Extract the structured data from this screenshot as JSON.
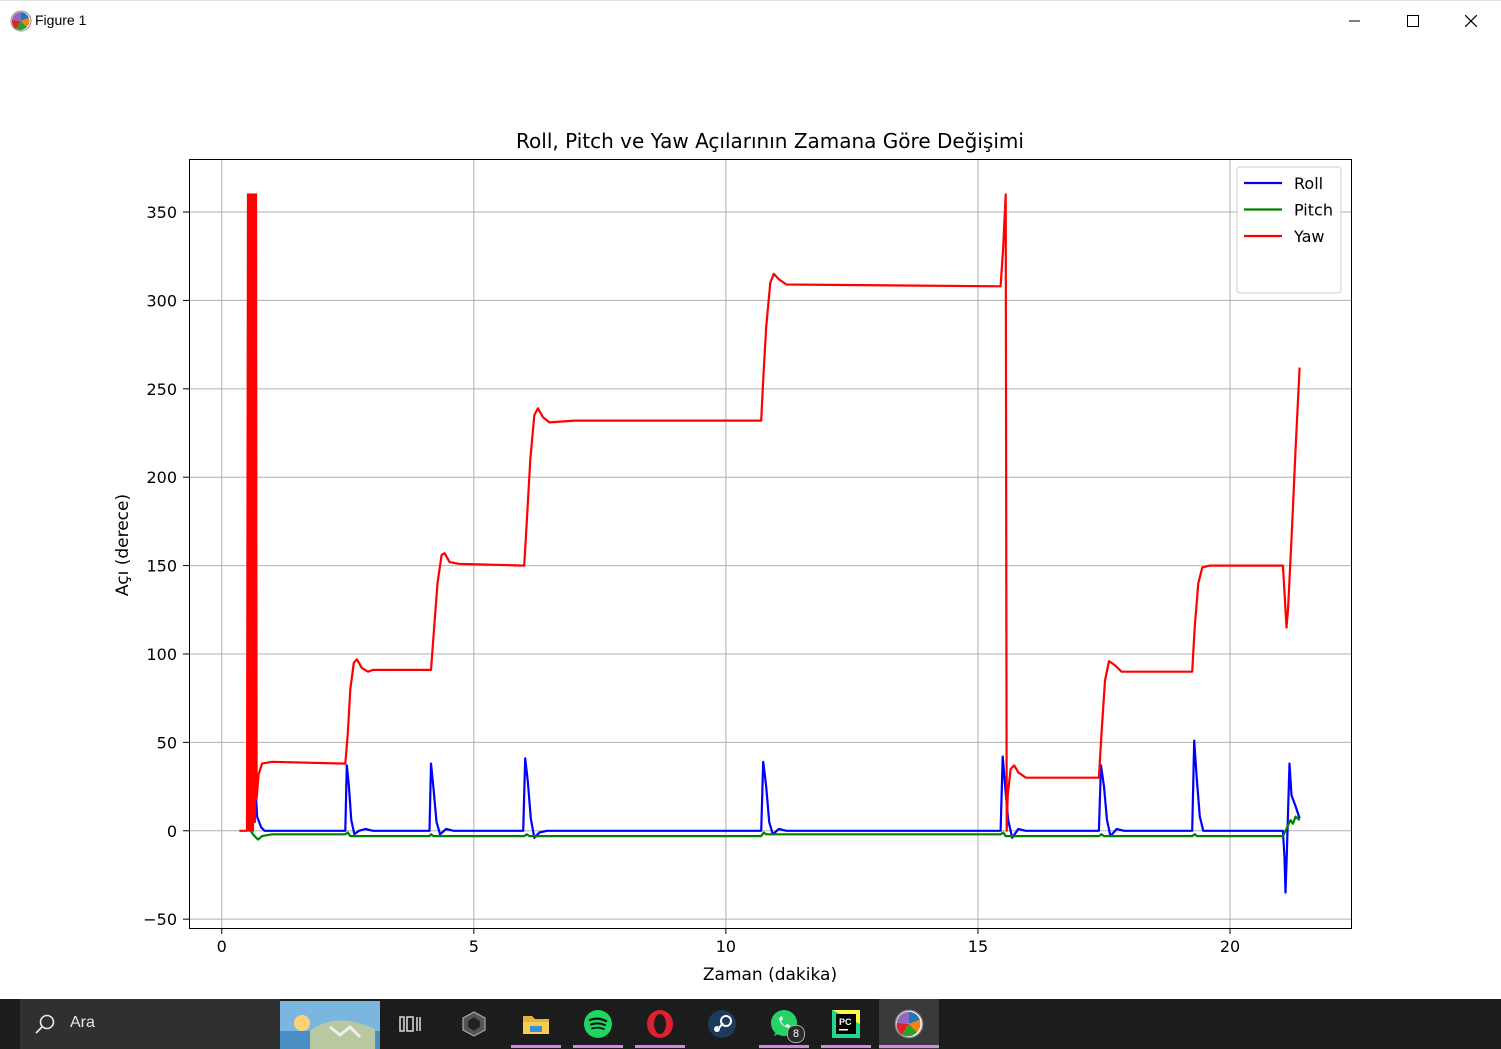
{
  "window": {
    "title": "Figure 1",
    "minimize_icon": "minimize-icon",
    "maximize_icon": "maximize-icon",
    "close_icon": "close-icon"
  },
  "taskbar": {
    "search_placeholder": "Ara",
    "search_icon": "search-icon",
    "apps": [
      {
        "name": "task-view",
        "icon": "task-view-icon"
      },
      {
        "name": "unity",
        "icon": "unity-icon"
      },
      {
        "name": "file-explorer",
        "icon": "folder-icon"
      },
      {
        "name": "spotify",
        "icon": "spotify-icon"
      },
      {
        "name": "opera",
        "icon": "opera-icon"
      },
      {
        "name": "steam",
        "icon": "steam-icon"
      },
      {
        "name": "whatsapp",
        "icon": "whatsapp-icon",
        "badge": "8"
      },
      {
        "name": "pycharm",
        "icon": "pycharm-icon",
        "label": "PC"
      },
      {
        "name": "matplotlib-figure",
        "icon": "matplotlib-icon"
      }
    ]
  },
  "chart_data": {
    "type": "line",
    "title": "Roll, Pitch ve Yaw Açılarının Zamana Göre Değişimi",
    "xlabel": "Zaman (dakika)",
    "ylabel": "Açı (derece)",
    "xlim": [
      -0.65,
      22.4
    ],
    "ylim": [
      -55,
      380
    ],
    "xticks": [
      0,
      5,
      10,
      15,
      20
    ],
    "yticks": [
      -50,
      0,
      50,
      100,
      150,
      200,
      250,
      300,
      350
    ],
    "xtick_labels": [
      "0",
      "5",
      "10",
      "15",
      "20"
    ],
    "ytick_labels": [
      "−50",
      "0",
      "50",
      "100",
      "150",
      "200",
      "250",
      "300",
      "350"
    ],
    "grid": true,
    "legend": "top-right",
    "series": [
      {
        "name": "Roll",
        "color": "#0000ff",
        "points": [
          [
            0.57,
            0
          ],
          [
            0.62,
            15
          ],
          [
            0.66,
            30
          ],
          [
            0.7,
            8
          ],
          [
            0.78,
            2
          ],
          [
            0.85,
            0
          ],
          [
            1.5,
            0
          ],
          [
            2.45,
            0
          ],
          [
            2.48,
            37
          ],
          [
            2.52,
            26
          ],
          [
            2.57,
            6
          ],
          [
            2.63,
            -2
          ],
          [
            2.72,
            0
          ],
          [
            2.85,
            1
          ],
          [
            3.0,
            0
          ],
          [
            4.12,
            0
          ],
          [
            4.15,
            38
          ],
          [
            4.2,
            24
          ],
          [
            4.26,
            5
          ],
          [
            4.33,
            -2
          ],
          [
            4.45,
            1
          ],
          [
            4.6,
            0
          ],
          [
            5.98,
            0
          ],
          [
            6.02,
            41
          ],
          [
            6.07,
            28
          ],
          [
            6.13,
            7
          ],
          [
            6.2,
            -4
          ],
          [
            6.3,
            -1
          ],
          [
            6.45,
            0
          ],
          [
            10.7,
            0
          ],
          [
            10.74,
            39
          ],
          [
            10.8,
            25
          ],
          [
            10.86,
            5
          ],
          [
            10.93,
            -2
          ],
          [
            11.05,
            1
          ],
          [
            11.2,
            0
          ],
          [
            15.45,
            0
          ],
          [
            15.49,
            42
          ],
          [
            15.53,
            28
          ],
          [
            15.6,
            6
          ],
          [
            15.68,
            -4
          ],
          [
            15.8,
            1
          ],
          [
            15.95,
            0
          ],
          [
            17.4,
            0
          ],
          [
            17.44,
            37
          ],
          [
            17.5,
            25
          ],
          [
            17.56,
            6
          ],
          [
            17.63,
            -3
          ],
          [
            17.75,
            1
          ],
          [
            17.9,
            0
          ],
          [
            19.25,
            0
          ],
          [
            19.29,
            51
          ],
          [
            19.34,
            30
          ],
          [
            19.4,
            8
          ],
          [
            19.47,
            0
          ],
          [
            19.6,
            0
          ],
          [
            21.05,
            0
          ],
          [
            21.08,
            -15
          ],
          [
            21.1,
            -35
          ],
          [
            21.13,
            -10
          ],
          [
            21.15,
            10
          ],
          [
            21.18,
            38
          ],
          [
            21.22,
            20
          ],
          [
            21.3,
            14
          ],
          [
            21.38,
            7
          ]
        ]
      },
      {
        "name": "Pitch",
        "color": "#008000",
        "points": [
          [
            0.57,
            0
          ],
          [
            0.65,
            -3
          ],
          [
            0.72,
            -5
          ],
          [
            0.8,
            -3
          ],
          [
            1.0,
            -2
          ],
          [
            2.45,
            -2
          ],
          [
            2.5,
            -1
          ],
          [
            2.55,
            -3
          ],
          [
            4.12,
            -3
          ],
          [
            4.15,
            -2
          ],
          [
            4.2,
            -3
          ],
          [
            6.0,
            -3
          ],
          [
            6.05,
            -2
          ],
          [
            6.1,
            -3
          ],
          [
            10.7,
            -3
          ],
          [
            10.75,
            -1
          ],
          [
            10.8,
            -2
          ],
          [
            15.45,
            -2
          ],
          [
            15.5,
            -1
          ],
          [
            15.55,
            -3
          ],
          [
            17.4,
            -3
          ],
          [
            17.45,
            -2
          ],
          [
            17.5,
            -3
          ],
          [
            19.25,
            -3
          ],
          [
            19.3,
            -2
          ],
          [
            19.35,
            -3
          ],
          [
            21.05,
            -3
          ],
          [
            21.1,
            0
          ],
          [
            21.15,
            3
          ],
          [
            21.2,
            6
          ],
          [
            21.25,
            4
          ],
          [
            21.3,
            8
          ],
          [
            21.38,
            6
          ]
        ]
      },
      {
        "name": "Yaw",
        "color": "#ff0000",
        "points": [
          [
            0.35,
            0
          ],
          [
            0.5,
            0
          ],
          [
            0.52,
            360
          ],
          [
            0.54,
            0
          ],
          [
            0.56,
            360
          ],
          [
            0.58,
            0
          ],
          [
            0.6,
            360
          ],
          [
            0.62,
            0
          ],
          [
            0.64,
            360
          ],
          [
            0.66,
            5
          ],
          [
            0.68,
            360
          ],
          [
            0.69,
            18
          ],
          [
            0.73,
            32
          ],
          [
            0.8,
            38
          ],
          [
            1.0,
            39
          ],
          [
            2.45,
            38
          ],
          [
            2.5,
            55
          ],
          [
            2.55,
            80
          ],
          [
            2.62,
            95
          ],
          [
            2.68,
            97
          ],
          [
            2.78,
            92
          ],
          [
            2.9,
            90
          ],
          [
            3.0,
            91
          ],
          [
            4.15,
            91
          ],
          [
            4.2,
            110
          ],
          [
            4.28,
            140
          ],
          [
            4.36,
            156
          ],
          [
            4.42,
            157
          ],
          [
            4.52,
            152
          ],
          [
            4.7,
            151
          ],
          [
            6.0,
            150
          ],
          [
            6.05,
            175
          ],
          [
            6.12,
            210
          ],
          [
            6.2,
            235
          ],
          [
            6.27,
            239
          ],
          [
            6.37,
            234
          ],
          [
            6.5,
            231
          ],
          [
            7.0,
            232
          ],
          [
            10.7,
            232
          ],
          [
            10.74,
            255
          ],
          [
            10.8,
            285
          ],
          [
            10.88,
            310
          ],
          [
            10.95,
            315
          ],
          [
            11.05,
            312
          ],
          [
            11.2,
            309
          ],
          [
            15.45,
            308
          ],
          [
            15.5,
            330
          ],
          [
            15.55,
            360
          ],
          [
            15.57,
            0
          ],
          [
            15.59,
            20
          ],
          [
            15.65,
            35
          ],
          [
            15.72,
            37
          ],
          [
            15.8,
            33
          ],
          [
            15.95,
            30
          ],
          [
            17.4,
            30
          ],
          [
            17.45,
            55
          ],
          [
            17.52,
            85
          ],
          [
            17.6,
            96
          ],
          [
            17.7,
            94
          ],
          [
            17.85,
            90
          ],
          [
            19.25,
            90
          ],
          [
            19.3,
            115
          ],
          [
            19.37,
            140
          ],
          [
            19.45,
            149
          ],
          [
            19.6,
            150
          ],
          [
            21.05,
            150
          ],
          [
            21.08,
            135
          ],
          [
            21.12,
            115
          ],
          [
            21.15,
            125
          ],
          [
            21.22,
            165
          ],
          [
            21.3,
            215
          ],
          [
            21.38,
            262
          ]
        ]
      }
    ]
  }
}
